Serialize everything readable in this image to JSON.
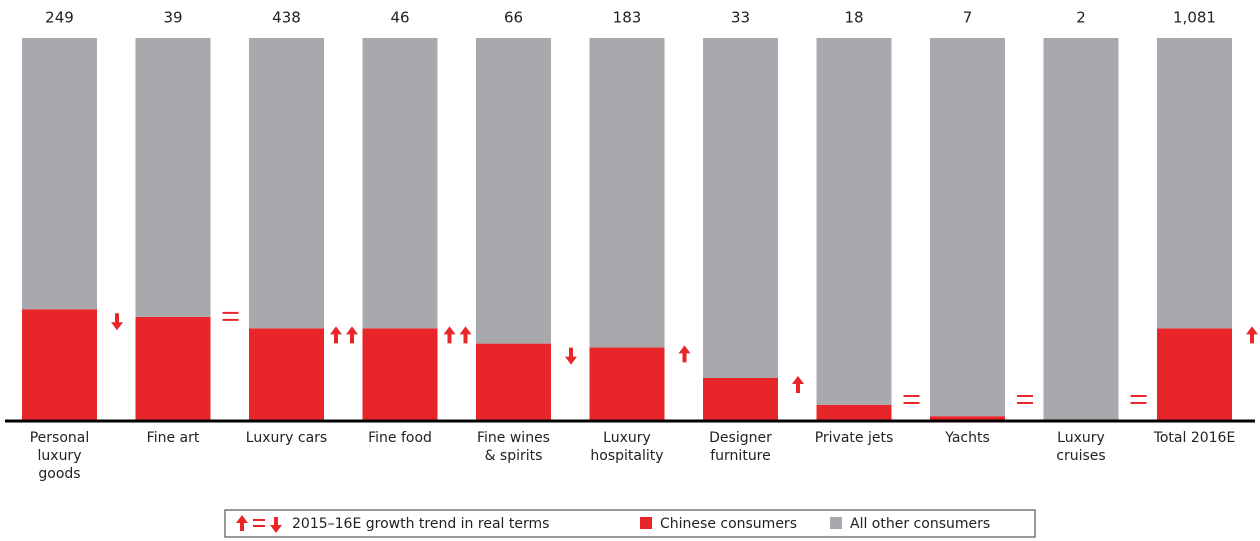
{
  "chart_data": {
    "type": "stacked_bar_100",
    "categories": [
      [
        "Personal",
        "luxury",
        "goods"
      ],
      [
        "Fine art"
      ],
      [
        "Luxury cars"
      ],
      [
        "Fine food"
      ],
      [
        "Fine wines",
        "& spirits"
      ],
      [
        "Luxury",
        "hospitality"
      ],
      [
        "Designer",
        "furniture"
      ],
      [
        "Private jets"
      ],
      [
        "Yachts"
      ],
      [
        "Luxury",
        "cruises"
      ],
      [
        "Total 2016E"
      ]
    ],
    "series": [
      {
        "name": "Chinese consumers",
        "color": "#e8262a",
        "values": [
          29,
          27,
          24,
          24,
          20,
          19,
          11,
          4,
          1,
          0,
          24
        ]
      },
      {
        "name": "All other consumers",
        "color": "#a7a9ac",
        "values": [
          71,
          73,
          76,
          76,
          80,
          81,
          89,
          96,
          99,
          100,
          76
        ]
      }
    ],
    "totals": {
      "values": [
        249,
        39,
        438,
        46,
        66,
        183,
        33,
        18,
        7,
        2,
        1081
      ],
      "value_labels": [
        "249",
        "39",
        "438",
        "46",
        "66",
        "183",
        "33",
        "18",
        "7",
        "2",
        "1,081"
      ]
    },
    "trends": [
      "down",
      "equal",
      "up-up",
      "up-up",
      "down",
      "up",
      "up",
      "equal",
      "equal",
      "equal",
      "up"
    ],
    "trend_legend": "2015–16E growth trend in real terms",
    "ylim": [
      0,
      100
    ]
  }
}
